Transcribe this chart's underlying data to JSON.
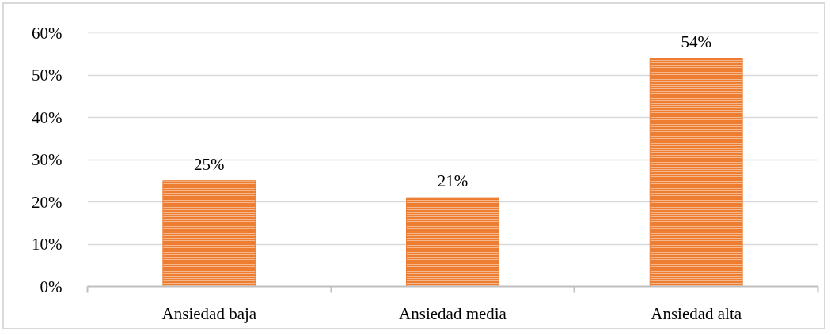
{
  "chart_data": {
    "type": "bar",
    "categories": [
      "Ansiedad baja",
      "Ansiedad media",
      "Ansiedad alta"
    ],
    "values": [
      25,
      21,
      54
    ],
    "color": "#ed7d31",
    "value_labels": [
      "25%",
      "21%",
      "54%"
    ],
    "ylim": [
      0,
      60
    ],
    "yticks": [
      {
        "value": 0,
        "label": "0%"
      },
      {
        "value": 10,
        "label": "10%"
      },
      {
        "value": 20,
        "label": "20%"
      },
      {
        "value": 30,
        "label": "30%"
      },
      {
        "value": 40,
        "label": "40%"
      },
      {
        "value": 50,
        "label": "50%"
      },
      {
        "value": 60,
        "label": "60%"
      }
    ],
    "grid": "y"
  }
}
